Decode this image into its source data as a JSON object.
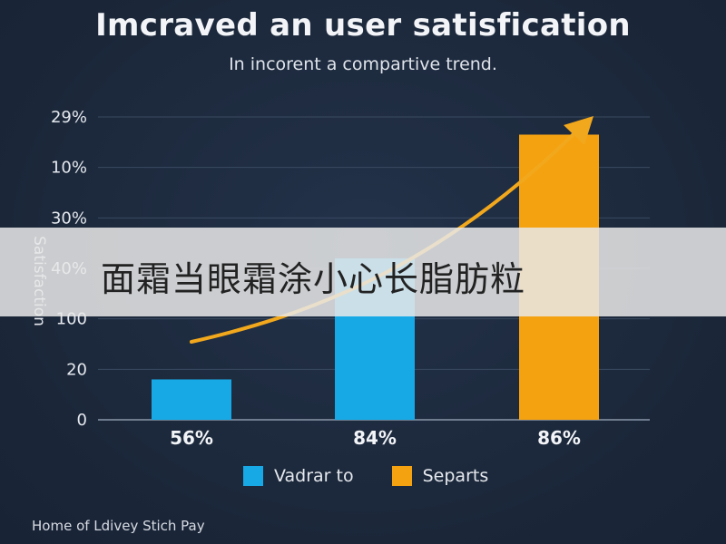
{
  "title": "Imcraved an user satisfication",
  "subtitle": "In incorent a compartive trend.",
  "y_axis_label": "Satisfaction",
  "footer": "Home of Ldivey Stich Pay",
  "banner_text": "面霜当眼霜涂小心长脂肪粒",
  "colors": {
    "background": "#1b2739",
    "blue": "#16a9e6",
    "orange": "#f5a211",
    "gridline": "#3a4a60",
    "arrow": "#f2a81c"
  },
  "chart_data": {
    "type": "bar",
    "title": "Imcraved an user satisfication",
    "subtitle": "In incorent a compartive trend.",
    "ylabel": "Satisfaction",
    "y_tick_labels": [
      "0",
      "20",
      "100",
      "40%",
      "30%",
      "10%",
      "29%"
    ],
    "categories": [
      "56%",
      "84%",
      "86%"
    ],
    "values": [
      16,
      64,
      113
    ],
    "bar_colors": [
      "#16a9e6",
      "#16a9e6",
      "#f5a211"
    ],
    "ylim": [
      0,
      120
    ],
    "grid": true,
    "legend": [
      {
        "name": "Vadrar to",
        "color": "#16a9e6"
      },
      {
        "name": "Separts",
        "color": "#f5a211"
      }
    ],
    "legend_placement": "bottom",
    "trend_arrow": true
  }
}
